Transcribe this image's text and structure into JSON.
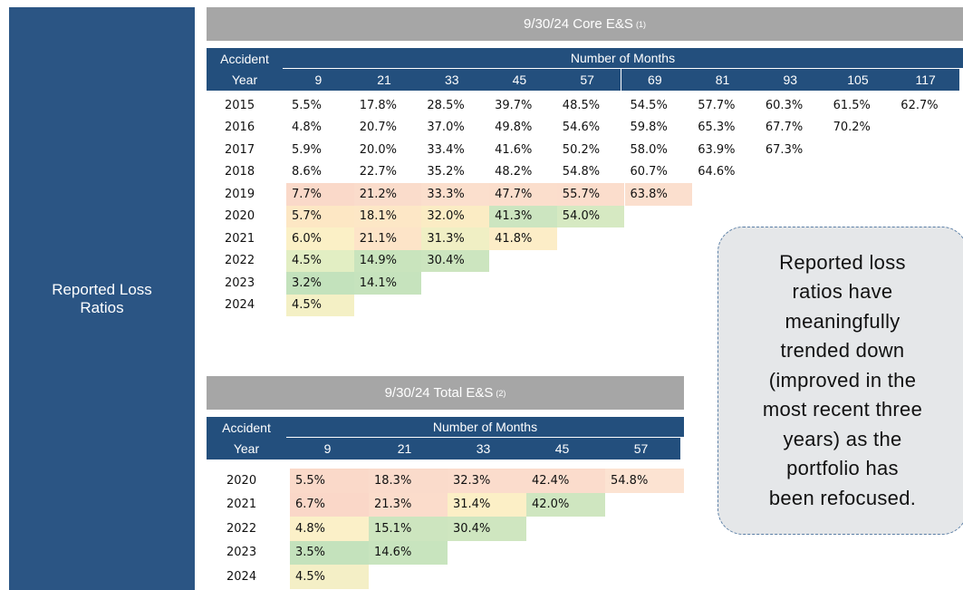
{
  "side_label": "Reported Loss Ratios",
  "core_table": {
    "title": "9/30/24 Core E&S",
    "title_note": "(1)",
    "row_header_top": "Accident",
    "row_header_bottom": "Year",
    "column_group": "Number of Months",
    "columns": [
      "9",
      "21",
      "33",
      "45",
      "57",
      "69",
      "81",
      "93",
      "105",
      "117"
    ],
    "rows": [
      {
        "year": "2015",
        "values": [
          "5.5%",
          "17.8%",
          "28.5%",
          "39.7%",
          "48.5%",
          "54.5%",
          "57.7%",
          "60.3%",
          "61.5%",
          "62.7%"
        ],
        "colors": [
          null,
          null,
          null,
          null,
          null,
          null,
          null,
          null,
          null,
          null
        ]
      },
      {
        "year": "2016",
        "values": [
          "4.8%",
          "20.7%",
          "37.0%",
          "49.8%",
          "54.6%",
          "59.8%",
          "65.3%",
          "67.7%",
          "70.2%"
        ],
        "colors": [
          null,
          null,
          null,
          null,
          null,
          null,
          null,
          null,
          null
        ]
      },
      {
        "year": "2017",
        "values": [
          "5.9%",
          "20.0%",
          "33.4%",
          "41.6%",
          "50.2%",
          "58.0%",
          "63.9%",
          "67.3%"
        ],
        "colors": [
          null,
          null,
          null,
          null,
          null,
          null,
          null,
          null
        ]
      },
      {
        "year": "2018",
        "values": [
          "8.6%",
          "22.7%",
          "35.2%",
          "48.2%",
          "54.8%",
          "60.7%",
          "64.6%"
        ],
        "colors": [
          null,
          null,
          null,
          null,
          null,
          null,
          null
        ]
      },
      {
        "year": "2019",
        "values": [
          "7.7%",
          "21.2%",
          "33.3%",
          "47.7%",
          "55.7%",
          "63.8%"
        ],
        "colors": [
          "#fad9c9",
          "#fadccb",
          "#fbdfcd",
          "#fbdecc",
          "#fbddcc",
          "#fbdfce"
        ]
      },
      {
        "year": "2020",
        "values": [
          "5.7%",
          "18.1%",
          "32.0%",
          "41.3%",
          "54.0%"
        ],
        "colors": [
          "#fde7c4",
          "#fde7c6",
          "#fbecc4",
          "#cce5c0",
          "#d6e9c2"
        ]
      },
      {
        "year": "2021",
        "values": [
          "6.0%",
          "21.1%",
          "31.3%",
          "41.8%"
        ],
        "colors": [
          "#fbf0c6",
          "#fde4c8",
          "#f0efc4",
          "#fcedc7"
        ]
      },
      {
        "year": "2022",
        "values": [
          "4.5%",
          "14.9%",
          "30.4%"
        ],
        "colors": [
          "#e2eec3",
          "#c9e4bd",
          "#cce5bf"
        ]
      },
      {
        "year": "2023",
        "values": [
          "3.2%",
          "14.1%"
        ],
        "colors": [
          "#c3e2bc",
          "#c6e3bd"
        ]
      },
      {
        "year": "2024",
        "values": [
          "4.5%"
        ],
        "colors": [
          "#f4f0c5"
        ]
      }
    ]
  },
  "total_table": {
    "title": "9/30/24 Total E&S",
    "title_note": "(2)",
    "row_header_top": "Accident",
    "row_header_bottom": "Year",
    "column_group": "Number of Months",
    "columns": [
      "9",
      "21",
      "33",
      "45",
      "57"
    ],
    "rows": [
      {
        "year": "2020",
        "values": [
          "5.5%",
          "18.3%",
          "32.3%",
          "42.4%",
          "54.8%"
        ],
        "colors": [
          "#fad9c9",
          "#fadbcb",
          "#fbdccc",
          "#fbdccc",
          "#fce3d2"
        ]
      },
      {
        "year": "2021",
        "values": [
          "6.7%",
          "21.3%",
          "31.4%",
          "42.0%"
        ],
        "colors": [
          "#fad7c8",
          "#fbdccb",
          "#fcefc6",
          "#cfe6c0"
        ]
      },
      {
        "year": "2022",
        "values": [
          "4.8%",
          "15.1%",
          "30.4%"
        ],
        "colors": [
          "#fbf0c8",
          "#cde5bf",
          "#cfe6c0"
        ]
      },
      {
        "year": "2023",
        "values": [
          "3.5%",
          "14.6%"
        ],
        "colors": [
          "#c4e2bc",
          "#c8e4be"
        ]
      },
      {
        "year": "2024",
        "values": [
          "4.5%"
        ],
        "colors": [
          "#f4efc6"
        ]
      }
    ]
  },
  "callout": {
    "lines": [
      "Reported loss",
      "ratios have",
      "meaningfully",
      "trended down",
      "(improved in the",
      "most recent three",
      "years) as the",
      "portfolio has",
      "been refocused."
    ]
  }
}
